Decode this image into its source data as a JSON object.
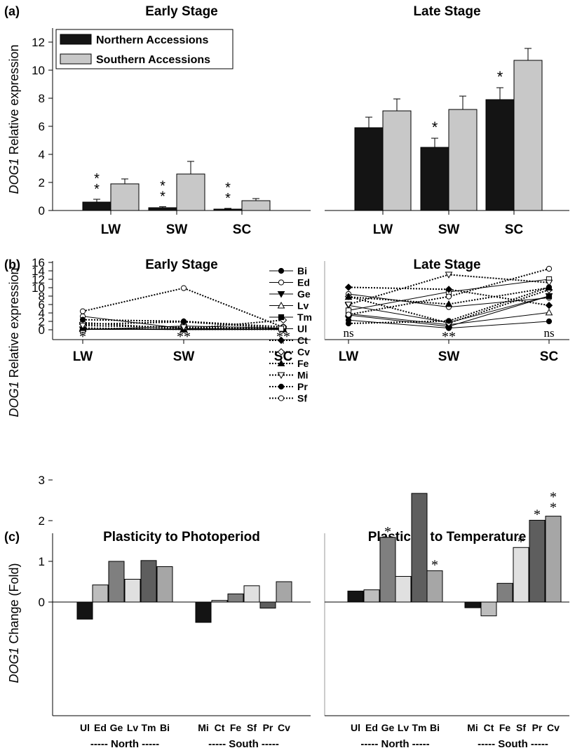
{
  "colors": {
    "north": "#141414",
    "south": "#c8c8c8",
    "c_bars": [
      "#141414",
      "#bdbdbd",
      "#7f7f7f",
      "#e0e0e0",
      "#5e5e5e",
      "#a6a6a6"
    ]
  },
  "chart_data": [
    {
      "type": "bar",
      "panel_label": "(a)",
      "title": "Early Stage",
      "ylabel_italic": "DOG1",
      "ylabel_rest": " Relative expression",
      "categories": [
        "LW",
        "SW",
        "SC"
      ],
      "ylim": [
        0,
        13
      ],
      "yticks": [
        0,
        2,
        4,
        6,
        8,
        10,
        12
      ],
      "legend": {
        "position": "top-left",
        "entries": [
          "Northern Accessions",
          "Southern Accessions"
        ]
      },
      "series": [
        {
          "name": "Northern Accessions",
          "values": [
            0.6,
            0.2,
            0.1
          ],
          "errors": [
            0.2,
            0.07,
            0.05
          ]
        },
        {
          "name": "Southern Accessions",
          "values": [
            1.9,
            2.6,
            0.7
          ],
          "errors": [
            0.35,
            0.9,
            0.15
          ]
        }
      ],
      "annotations": [
        {
          "category": 0,
          "text": "* *"
        },
        {
          "category": 1,
          "text": "* *"
        },
        {
          "category": 2,
          "text": "* *"
        }
      ]
    },
    {
      "type": "bar",
      "title": "Late Stage",
      "categories": [
        "LW",
        "SW",
        "SC"
      ],
      "ylim": [
        0,
        13
      ],
      "series": [
        {
          "name": "Northern Accessions",
          "values": [
            5.9,
            4.5,
            7.9
          ],
          "errors": [
            0.75,
            0.65,
            0.85
          ]
        },
        {
          "name": "Southern Accessions",
          "values": [
            7.1,
            7.2,
            10.7
          ],
          "errors": [
            0.85,
            0.95,
            0.85
          ]
        }
      ],
      "annotations": [
        {
          "category": 1,
          "text": "*"
        },
        {
          "category": 2,
          "text": "*"
        }
      ]
    },
    {
      "type": "line",
      "panel_label": "(b)",
      "title": "Early Stage",
      "ylabel_italic": "DOG1",
      "ylabel_rest": " Relative expression",
      "categories": [
        "LW",
        "SW",
        "SC"
      ],
      "ylim": [
        -1.5,
        16
      ],
      "yticks": [
        0,
        2,
        4,
        6,
        8,
        10,
        12,
        14,
        16
      ],
      "legend": {
        "position": "top-right"
      },
      "series": [
        {
          "name": "Bi",
          "marker": "circle-filled",
          "dash": false,
          "values": [
            0.1,
            0.05,
            0.1
          ]
        },
        {
          "name": "Ed",
          "marker": "circle-open",
          "dash": false,
          "values": [
            3.2,
            0.3,
            0.2
          ]
        },
        {
          "name": "Ge",
          "marker": "tri-down-filled",
          "dash": false,
          "values": [
            0.1,
            0.1,
            0.05
          ]
        },
        {
          "name": "Lv",
          "marker": "tri-up-open",
          "dash": false,
          "values": [
            0.2,
            0.2,
            0.1
          ]
        },
        {
          "name": "Tm",
          "marker": "square-filled",
          "dash": false,
          "values": [
            0.1,
            0.05,
            0.1
          ]
        },
        {
          "name": "Ul",
          "marker": "square-open",
          "dash": false,
          "values": [
            0.0,
            0.9,
            0.4
          ]
        },
        {
          "name": "Ct",
          "marker": "diamond-filled",
          "dash": true,
          "values": [
            1.3,
            1.9,
            0.3
          ]
        },
        {
          "name": "Cv",
          "marker": "diamond-open",
          "dash": true,
          "values": [
            1.7,
            0.2,
            2.3
          ]
        },
        {
          "name": "Fe",
          "marker": "tri-up-filled",
          "dash": true,
          "values": [
            0.4,
            0.1,
            0.1
          ]
        },
        {
          "name": "Mi",
          "marker": "tri-down-open",
          "dash": true,
          "values": [
            1.0,
            0.6,
            0.2
          ]
        },
        {
          "name": "Pr",
          "marker": "circle-filled",
          "dash": true,
          "values": [
            2.4,
            2.0,
            0.7
          ]
        },
        {
          "name": "Sf",
          "marker": "circle-open",
          "dash": true,
          "values": [
            4.4,
            9.9,
            0.6
          ]
        }
      ],
      "annotations": [
        {
          "category": 0,
          "text": "*"
        },
        {
          "category": 1,
          "text": "**"
        },
        {
          "category": 2,
          "text": "**"
        }
      ]
    },
    {
      "type": "line",
      "title": "Late Stage",
      "categories": [
        "LW",
        "SW",
        "SC"
      ],
      "ylim": [
        -1.5,
        16
      ],
      "series": [
        {
          "name": "Bi",
          "marker": "circle-filled",
          "dash": false,
          "values": [
            2.3,
            0.4,
            2.0
          ]
        },
        {
          "name": "Ed",
          "marker": "circle-open",
          "dash": false,
          "values": [
            8.5,
            5.4,
            7.6
          ]
        },
        {
          "name": "Ge",
          "marker": "tri-down-filled",
          "dash": false,
          "values": [
            5.8,
            1.7,
            8.0
          ]
        },
        {
          "name": "Lv",
          "marker": "tri-up-open",
          "dash": false,
          "values": [
            3.8,
            1.2,
            4.1
          ]
        },
        {
          "name": "Tm",
          "marker": "square-filled",
          "dash": false,
          "values": [
            3.5,
            0.8,
            8.0
          ]
        },
        {
          "name": "Ul",
          "marker": "square-open",
          "dash": false,
          "values": [
            4.6,
            9.0,
            12.0
          ]
        },
        {
          "name": "Ct",
          "marker": "diamond-filled",
          "dash": true,
          "values": [
            10.1,
            9.6,
            5.8
          ]
        },
        {
          "name": "Cv",
          "marker": "diamond-open",
          "dash": true,
          "values": [
            7.9,
            1.6,
            9.5
          ]
        },
        {
          "name": "Fe",
          "marker": "tri-up-filled",
          "dash": true,
          "values": [
            7.8,
            6.1,
            10.0
          ]
        },
        {
          "name": "Mi",
          "marker": "tri-down-open",
          "dash": true,
          "values": [
            6.0,
            13.1,
            11.2
          ]
        },
        {
          "name": "Pr",
          "marker": "circle-filled",
          "dash": true,
          "values": [
            1.5,
            2.1,
            10.1
          ]
        },
        {
          "name": "Sf",
          "marker": "circle-open",
          "dash": true,
          "values": [
            3.6,
            7.9,
            14.5
          ]
        }
      ],
      "annotations": [
        {
          "category": 0,
          "text": "ns"
        },
        {
          "category": 1,
          "text": "**"
        },
        {
          "category": 2,
          "text": "ns"
        }
      ]
    },
    {
      "type": "bar",
      "panel_label": "(c)",
      "title": "Plasticity to Photoperiod",
      "ylabel_italic": "DOG1",
      "ylabel_rest": " Change (Fold)",
      "ylim": [
        -0.85,
        3
      ],
      "yticks": [
        0,
        1,
        2,
        3
      ],
      "categories": [
        "Ul",
        "Ed",
        "Ge",
        "Lv",
        "Tm",
        "Bi",
        "Mi",
        "Ct",
        "Fe",
        "Sf",
        "Pr",
        "Cv"
      ],
      "groups": [
        "----- North -----",
        "----- South -----"
      ],
      "values": [
        -0.42,
        0.42,
        1.0,
        0.56,
        1.02,
        0.87,
        -0.5,
        0.04,
        0.2,
        0.4,
        -0.15,
        0.5
      ],
      "annotations": []
    },
    {
      "type": "bar",
      "title": "Plasticity to Temperature",
      "ylim": [
        -0.85,
        3
      ],
      "categories": [
        "Ul",
        "Ed",
        "Ge",
        "Lv",
        "Tm",
        "Bi",
        "Mi",
        "Ct",
        "Fe",
        "Sf",
        "Pr",
        "Cv"
      ],
      "groups": [
        "----- North -----",
        "----- South -----"
      ],
      "values": [
        0.27,
        0.3,
        1.59,
        0.63,
        2.67,
        0.77,
        -0.14,
        -0.34,
        0.46,
        1.34,
        2.01,
        2.11
      ],
      "annotations": [
        {
          "category": 2,
          "text": "*"
        },
        {
          "category": 5,
          "text": "*"
        },
        {
          "category": 9,
          "text": "*"
        },
        {
          "category": 10,
          "text": "*"
        },
        {
          "category": 11,
          "text": "* *"
        }
      ]
    }
  ]
}
